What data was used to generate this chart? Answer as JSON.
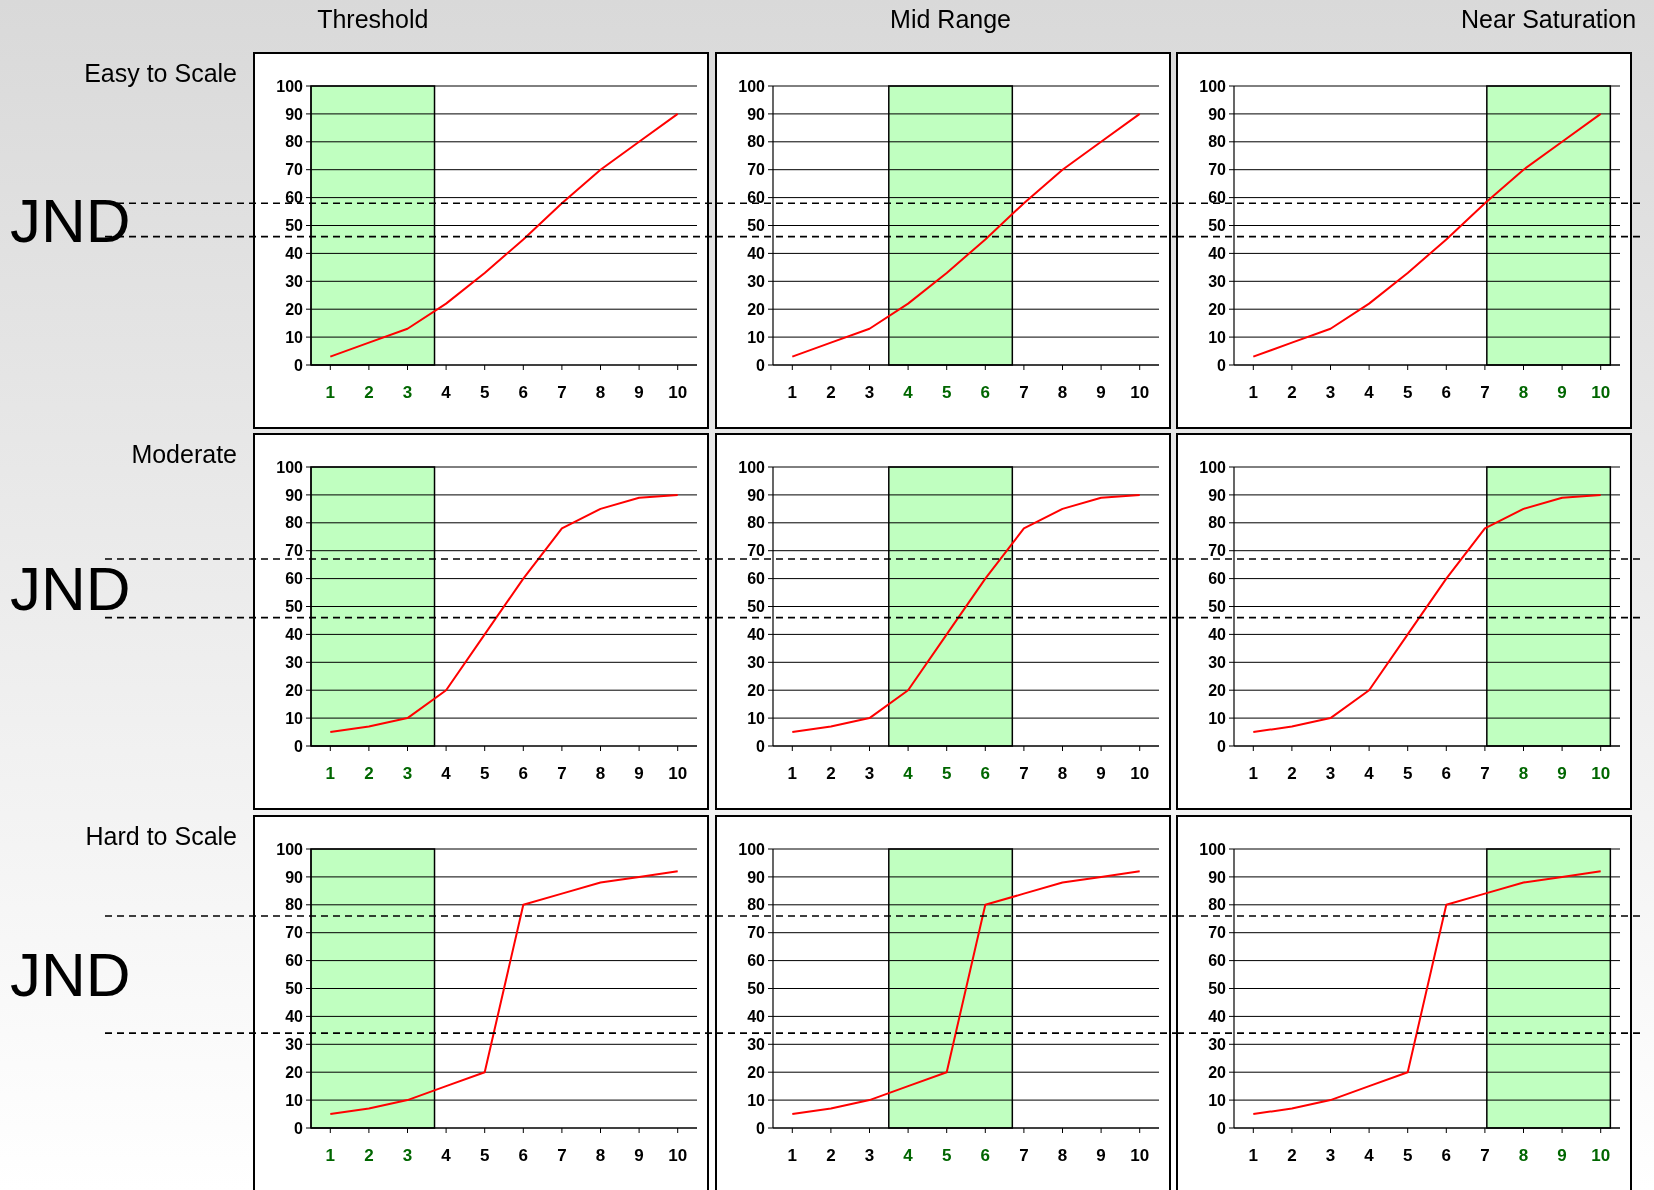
{
  "chart_data": [
    {
      "type": "line",
      "title": "Threshold",
      "ylabel": "Easy to Scale",
      "annotations": [
        "JND"
      ],
      "x": [
        1,
        2,
        3,
        4,
        5,
        6,
        7,
        8,
        9,
        10
      ],
      "values": [
        3,
        8,
        13,
        22,
        33,
        45,
        58,
        70,
        80,
        90
      ],
      "color": "#ff0000",
      "xlim": [
        0.5,
        10.5
      ],
      "xticks": [
        1,
        2,
        3,
        4,
        5,
        6,
        7,
        8,
        9,
        10
      ],
      "ylim": [
        0,
        100
      ],
      "yticks": [
        0,
        10,
        20,
        30,
        40,
        50,
        60,
        70,
        80,
        90,
        100
      ],
      "grid": "y",
      "bands": [
        {
          "axis": "x",
          "from": 0.5,
          "to": 3.7,
          "color": "#c0ffc0"
        }
      ],
      "ref_lines": [
        {
          "axis": "y",
          "value": 58,
          "line_style": "dashed",
          "color": "#000000"
        },
        {
          "axis": "y",
          "value": 46,
          "line_style": "dashed",
          "color": "#000000"
        }
      ]
    },
    {
      "type": "line",
      "title": "Mid Range",
      "x": [
        1,
        2,
        3,
        4,
        5,
        6,
        7,
        8,
        9,
        10
      ],
      "values": [
        3,
        8,
        13,
        22,
        33,
        45,
        58,
        70,
        80,
        90
      ],
      "color": "#ff0000",
      "xlim": [
        0.5,
        10.5
      ],
      "xticks": [
        1,
        2,
        3,
        4,
        5,
        6,
        7,
        8,
        9,
        10
      ],
      "ylim": [
        0,
        100
      ],
      "yticks": [
        0,
        10,
        20,
        30,
        40,
        50,
        60,
        70,
        80,
        90,
        100
      ],
      "grid": "y",
      "bands": [
        {
          "axis": "x",
          "from": 3.5,
          "to": 6.7,
          "color": "#c0ffc0"
        }
      ],
      "ref_lines": [
        {
          "axis": "y",
          "value": 58,
          "line_style": "dashed",
          "color": "#000000"
        },
        {
          "axis": "y",
          "value": 46,
          "line_style": "dashed",
          "color": "#000000"
        }
      ]
    },
    {
      "type": "line",
      "title": "Near Saturation",
      "x": [
        1,
        2,
        3,
        4,
        5,
        6,
        7,
        8,
        9,
        10
      ],
      "values": [
        3,
        8,
        13,
        22,
        33,
        45,
        58,
        70,
        80,
        90
      ],
      "color": "#ff0000",
      "xlim": [
        0.5,
        10.5
      ],
      "xticks": [
        1,
        2,
        3,
        4,
        5,
        6,
        7,
        8,
        9,
        10
      ],
      "ylim": [
        0,
        100
      ],
      "yticks": [
        0,
        10,
        20,
        30,
        40,
        50,
        60,
        70,
        80,
        90,
        100
      ],
      "grid": "y",
      "bands": [
        {
          "axis": "x",
          "from": 7.05,
          "to": 10.25,
          "color": "#c0ffc0"
        }
      ],
      "ref_lines": [
        {
          "axis": "y",
          "value": 58,
          "line_style": "dashed",
          "color": "#000000"
        },
        {
          "axis": "y",
          "value": 46,
          "line_style": "dashed",
          "color": "#000000"
        }
      ]
    },
    {
      "type": "line",
      "ylabel": "Moderate",
      "annotations": [
        "JND"
      ],
      "x": [
        1,
        2,
        3,
        4,
        5,
        6,
        7,
        8,
        9,
        10
      ],
      "values": [
        5,
        7,
        10,
        20,
        40,
        60,
        78,
        85,
        89,
        90
      ],
      "color": "#ff0000",
      "xlim": [
        0.5,
        10.5
      ],
      "xticks": [
        1,
        2,
        3,
        4,
        5,
        6,
        7,
        8,
        9,
        10
      ],
      "ylim": [
        0,
        100
      ],
      "yticks": [
        0,
        10,
        20,
        30,
        40,
        50,
        60,
        70,
        80,
        90,
        100
      ],
      "grid": "y",
      "bands": [
        {
          "axis": "x",
          "from": 0.5,
          "to": 3.7,
          "color": "#c0ffc0"
        }
      ],
      "ref_lines": [
        {
          "axis": "y",
          "value": 67,
          "line_style": "dashed",
          "color": "#000000"
        },
        {
          "axis": "y",
          "value": 46,
          "line_style": "dashed",
          "color": "#000000"
        }
      ]
    },
    {
      "type": "line",
      "x": [
        1,
        2,
        3,
        4,
        5,
        6,
        7,
        8,
        9,
        10
      ],
      "values": [
        5,
        7,
        10,
        20,
        40,
        60,
        78,
        85,
        89,
        90
      ],
      "color": "#ff0000",
      "xlim": [
        0.5,
        10.5
      ],
      "xticks": [
        1,
        2,
        3,
        4,
        5,
        6,
        7,
        8,
        9,
        10
      ],
      "ylim": [
        0,
        100
      ],
      "yticks": [
        0,
        10,
        20,
        30,
        40,
        50,
        60,
        70,
        80,
        90,
        100
      ],
      "grid": "y",
      "bands": [
        {
          "axis": "x",
          "from": 3.5,
          "to": 6.7,
          "color": "#c0ffc0"
        }
      ],
      "ref_lines": [
        {
          "axis": "y",
          "value": 67,
          "line_style": "dashed",
          "color": "#000000"
        },
        {
          "axis": "y",
          "value": 46,
          "line_style": "dashed",
          "color": "#000000"
        }
      ]
    },
    {
      "type": "line",
      "x": [
        1,
        2,
        3,
        4,
        5,
        6,
        7,
        8,
        9,
        10
      ],
      "values": [
        5,
        7,
        10,
        20,
        40,
        60,
        78,
        85,
        89,
        90
      ],
      "color": "#ff0000",
      "xlim": [
        0.5,
        10.5
      ],
      "xticks": [
        1,
        2,
        3,
        4,
        5,
        6,
        7,
        8,
        9,
        10
      ],
      "ylim": [
        0,
        100
      ],
      "yticks": [
        0,
        10,
        20,
        30,
        40,
        50,
        60,
        70,
        80,
        90,
        100
      ],
      "grid": "y",
      "bands": [
        {
          "axis": "x",
          "from": 7.05,
          "to": 10.25,
          "color": "#c0ffc0"
        }
      ],
      "ref_lines": [
        {
          "axis": "y",
          "value": 67,
          "line_style": "dashed",
          "color": "#000000"
        },
        {
          "axis": "y",
          "value": 46,
          "line_style": "dashed",
          "color": "#000000"
        }
      ]
    },
    {
      "type": "line",
      "ylabel": "Hard to Scale",
      "annotations": [
        "JND"
      ],
      "x": [
        1,
        2,
        3,
        4,
        5,
        6,
        7,
        8,
        9,
        10
      ],
      "values": [
        5,
        7,
        10,
        15,
        20,
        80,
        84,
        88,
        90,
        92
      ],
      "color": "#ff0000",
      "xlim": [
        0.5,
        10.5
      ],
      "xticks": [
        1,
        2,
        3,
        4,
        5,
        6,
        7,
        8,
        9,
        10
      ],
      "ylim": [
        0,
        100
      ],
      "yticks": [
        0,
        10,
        20,
        30,
        40,
        50,
        60,
        70,
        80,
        90,
        100
      ],
      "grid": "y",
      "bands": [
        {
          "axis": "x",
          "from": 0.5,
          "to": 3.7,
          "color": "#c0ffc0"
        }
      ],
      "ref_lines": [
        {
          "axis": "y",
          "value": 76,
          "line_style": "dashed",
          "color": "#000000"
        },
        {
          "axis": "y",
          "value": 34,
          "line_style": "dashed",
          "color": "#000000"
        }
      ]
    },
    {
      "type": "line",
      "x": [
        1,
        2,
        3,
        4,
        5,
        6,
        7,
        8,
        9,
        10
      ],
      "values": [
        5,
        7,
        10,
        15,
        20,
        80,
        84,
        88,
        90,
        92
      ],
      "color": "#ff0000",
      "xlim": [
        0.5,
        10.5
      ],
      "xticks": [
        1,
        2,
        3,
        4,
        5,
        6,
        7,
        8,
        9,
        10
      ],
      "ylim": [
        0,
        100
      ],
      "yticks": [
        0,
        10,
        20,
        30,
        40,
        50,
        60,
        70,
        80,
        90,
        100
      ],
      "grid": "y",
      "bands": [
        {
          "axis": "x",
          "from": 3.5,
          "to": 6.7,
          "color": "#c0ffc0"
        }
      ],
      "ref_lines": [
        {
          "axis": "y",
          "value": 76,
          "line_style": "dashed",
          "color": "#000000"
        },
        {
          "axis": "y",
          "value": 34,
          "line_style": "dashed",
          "color": "#000000"
        }
      ]
    },
    {
      "type": "line",
      "x": [
        1,
        2,
        3,
        4,
        5,
        6,
        7,
        8,
        9,
        10
      ],
      "values": [
        5,
        7,
        10,
        15,
        20,
        80,
        84,
        88,
        90,
        92
      ],
      "color": "#ff0000",
      "xlim": [
        0.5,
        10.5
      ],
      "xticks": [
        1,
        2,
        3,
        4,
        5,
        6,
        7,
        8,
        9,
        10
      ],
      "ylim": [
        0,
        100
      ],
      "yticks": [
        0,
        10,
        20,
        30,
        40,
        50,
        60,
        70,
        80,
        90,
        100
      ],
      "grid": "y",
      "bands": [
        {
          "axis": "x",
          "from": 7.05,
          "to": 10.25,
          "color": "#c0ffc0"
        }
      ],
      "ref_lines": [
        {
          "axis": "y",
          "value": 76,
          "line_style": "dashed",
          "color": "#000000"
        },
        {
          "axis": "y",
          "value": 34,
          "line_style": "dashed",
          "color": "#000000"
        }
      ]
    }
  ]
}
